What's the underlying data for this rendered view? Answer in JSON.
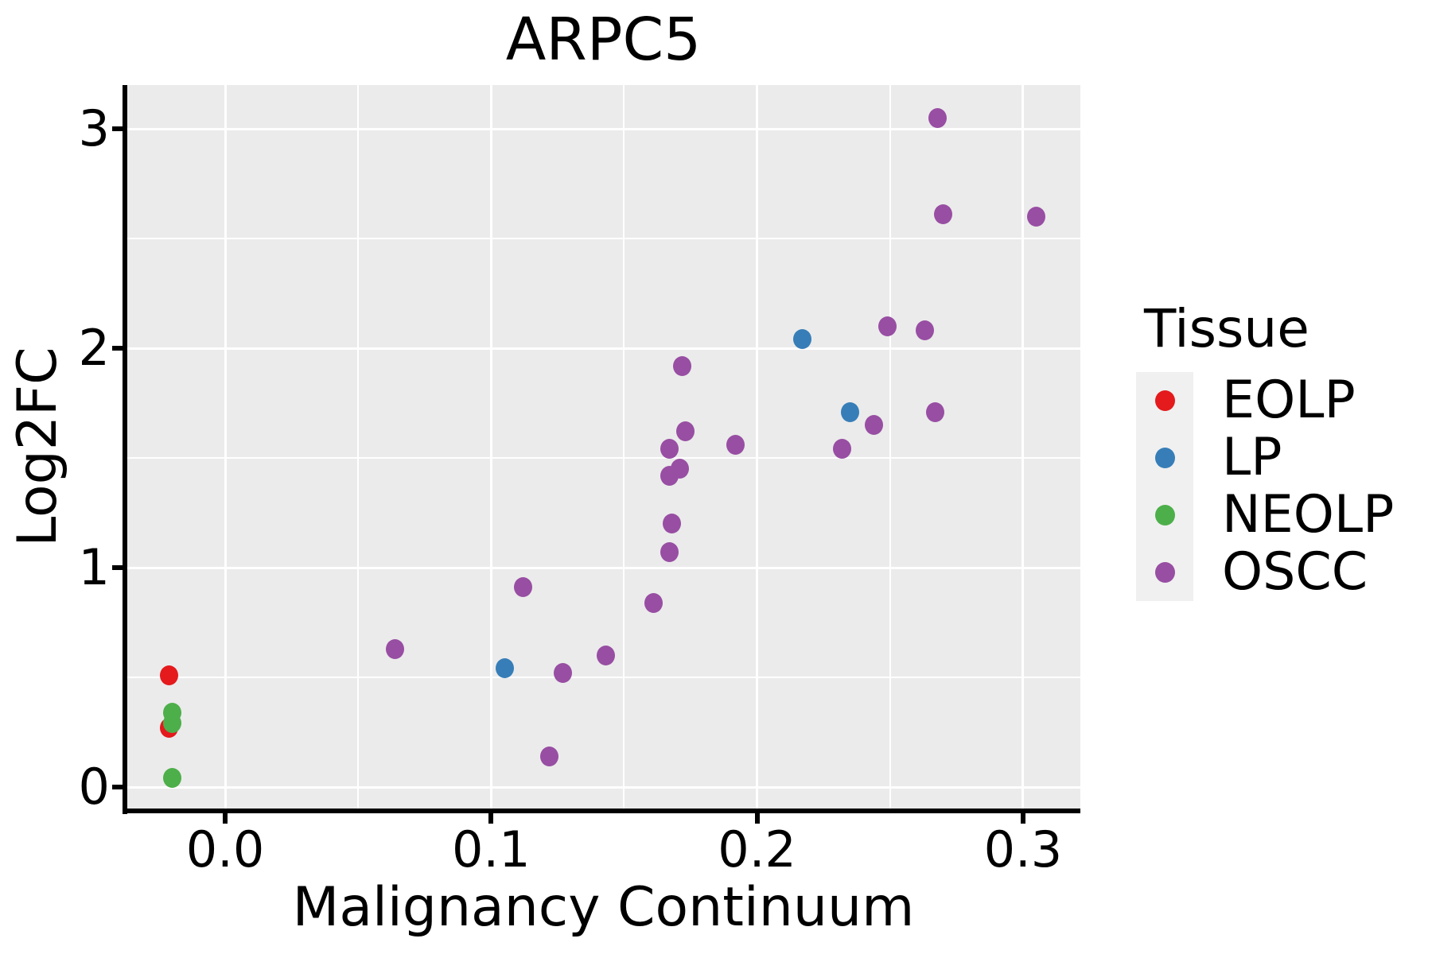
{
  "title": "ARPC5",
  "axes": {
    "x": {
      "label": "Malignancy Continuum",
      "tick_labels": [
        "0.0",
        "0.1",
        "0.2",
        "0.3"
      ],
      "tick_values": [
        0.0,
        0.1,
        0.2,
        0.3
      ],
      "minor_values": [
        0.05,
        0.15,
        0.25
      ]
    },
    "y": {
      "label": "Log2FC",
      "tick_labels": [
        "0",
        "1",
        "2",
        "3"
      ],
      "tick_values": [
        0,
        1,
        2,
        3
      ],
      "minor_values": [
        0.5,
        1.5,
        2.5
      ]
    }
  },
  "legend": {
    "title": "Tissue",
    "items": [
      {
        "label": "EOLP",
        "color": "#E41A1C"
      },
      {
        "label": "LP",
        "color": "#377EB8"
      },
      {
        "label": "NEOLP",
        "color": "#4DAF4A"
      },
      {
        "label": "OSCC",
        "color": "#984EA3"
      }
    ]
  },
  "chart_data": {
    "type": "scatter",
    "title": "ARPC5",
    "xlabel": "Malignancy Continuum",
    "ylabel": "Log2FC",
    "xlim": [
      -0.037,
      0.322
    ],
    "ylim": [
      -0.11,
      3.2
    ],
    "grid": true,
    "legend_position": "right",
    "panel_background": "#EBEBEB",
    "series": [
      {
        "name": "EOLP",
        "color": "#E41A1C",
        "points": [
          [
            -0.021,
            0.51
          ],
          [
            -0.021,
            0.27
          ]
        ]
      },
      {
        "name": "LP",
        "color": "#377EB8",
        "points": [
          [
            0.105,
            0.54
          ],
          [
            0.217,
            2.04
          ],
          [
            0.235,
            1.71
          ]
        ]
      },
      {
        "name": "NEOLP",
        "color": "#4DAF4A",
        "points": [
          [
            -0.02,
            0.34
          ],
          [
            -0.02,
            0.29
          ],
          [
            -0.02,
            0.04
          ]
        ]
      },
      {
        "name": "OSCC",
        "color": "#984EA3",
        "points": [
          [
            0.064,
            0.63
          ],
          [
            0.112,
            0.91
          ],
          [
            0.122,
            0.14
          ],
          [
            0.127,
            0.52
          ],
          [
            0.143,
            0.6
          ],
          [
            0.161,
            0.84
          ],
          [
            0.167,
            1.07
          ],
          [
            0.168,
            1.2
          ],
          [
            0.167,
            1.42
          ],
          [
            0.171,
            1.45
          ],
          [
            0.167,
            1.54
          ],
          [
            0.173,
            1.62
          ],
          [
            0.172,
            1.92
          ],
          [
            0.192,
            1.56
          ],
          [
            0.232,
            1.54
          ],
          [
            0.244,
            1.65
          ],
          [
            0.249,
            2.1
          ],
          [
            0.263,
            2.08
          ],
          [
            0.267,
            1.71
          ],
          [
            0.268,
            3.05
          ],
          [
            0.27,
            2.61
          ],
          [
            0.305,
            2.6
          ]
        ]
      }
    ]
  },
  "colors": {
    "panel_bg": "#EBEBEB",
    "gridline": "#FFFFFF",
    "axis": "#000000",
    "text": "#000000",
    "legend_key_bg": "#F0F0F0"
  }
}
